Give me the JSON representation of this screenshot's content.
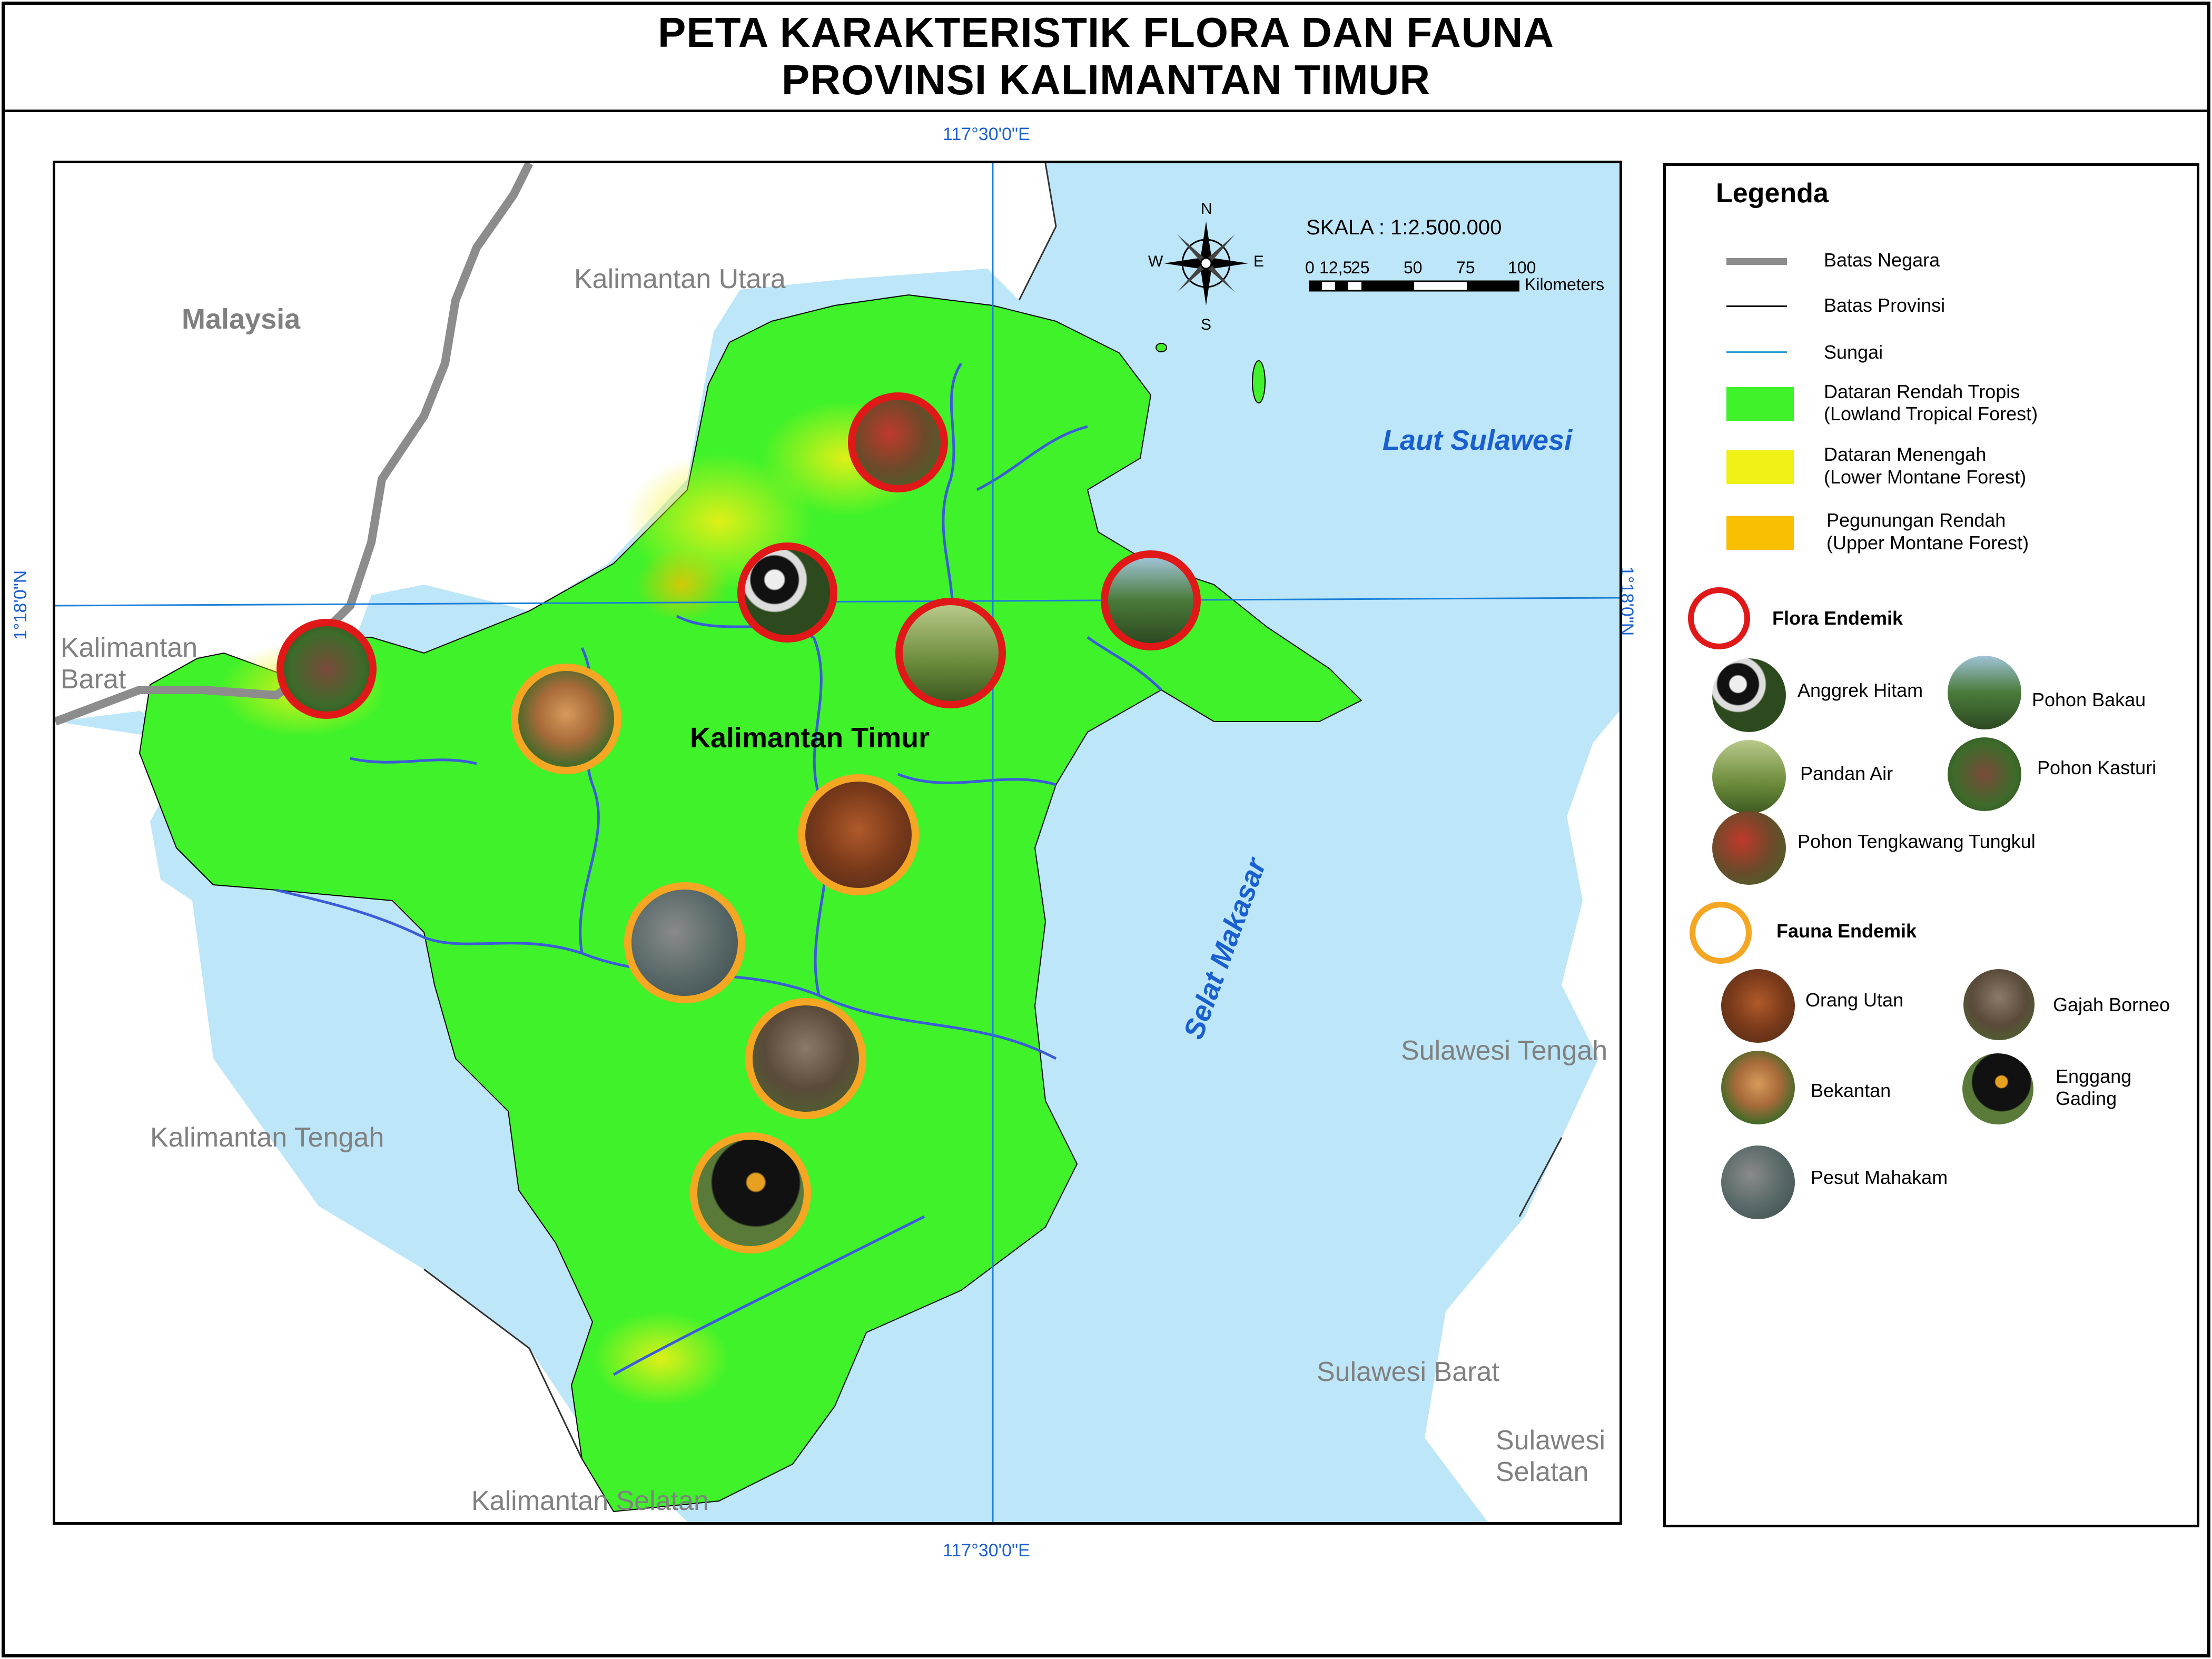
{
  "title": {
    "line1": "PETA KARAKTERISTIK FLORA DAN FAUNA",
    "line2": "PROVINSI KALIMANTAN TIMUR"
  },
  "coordinates": {
    "top_lon": "117°30'0\"E",
    "bottom_lon": "117°30'0\"E",
    "left_lat": "1°18'0\"N",
    "right_lat": "1°18'0\"N"
  },
  "map": {
    "labels": {
      "malaysia": "Malaysia",
      "kal_utara": "Kalimantan Utara",
      "kal_barat_1": "Kalimantan",
      "kal_barat_2": "Barat",
      "kal_timur": "Kalimantan Timur",
      "kal_tengah": "Kalimantan Tengah",
      "kal_selatan": "Kalimantan Selatan",
      "laut_sulawesi": "Laut Sulawesi",
      "selat_makasar": "Selat Makasar",
      "sul_tengah": "Sulawesi Tengah",
      "sul_barat": "Sulawesi Barat",
      "sul_selatan_1": "Sulawesi",
      "sul_selatan_2": "Selatan"
    },
    "scale": {
      "title": "SKALA : 1:2.500.000",
      "ticks": [
        "0",
        "12,5",
        "25",
        "50",
        "75",
        "100"
      ],
      "unit": "Kilometers"
    },
    "compass": {
      "n": "N",
      "s": "S",
      "e": "E",
      "w": "W"
    },
    "markers": [
      {
        "kind": "flora",
        "subject": "Pohon Tengkawang Tungkul"
      },
      {
        "kind": "flora",
        "subject": "Anggrek Hitam"
      },
      {
        "kind": "flora",
        "subject": "Pandan Air"
      },
      {
        "kind": "flora",
        "subject": "Pohon Bakau"
      },
      {
        "kind": "flora",
        "subject": "Pohon Kasturi"
      },
      {
        "kind": "fauna",
        "subject": "Bekantan"
      },
      {
        "kind": "fauna",
        "subject": "Orang Utan"
      },
      {
        "kind": "fauna",
        "subject": "Pesut Mahakam"
      },
      {
        "kind": "fauna",
        "subject": "Gajah Borneo"
      },
      {
        "kind": "fauna",
        "subject": "Enggang Gading"
      }
    ]
  },
  "legend": {
    "title": "Legenda",
    "lines": [
      {
        "label": "Batas Negara",
        "color": "#8c8c8c"
      },
      {
        "label": "Batas Provinsi",
        "color": "#000000"
      },
      {
        "label": "Sungai",
        "color": "#2a9fd6"
      }
    ],
    "zones": [
      {
        "line1": "Dataran Rendah Tropis",
        "line2": "(Lowland Tropical Forest)",
        "color": "#3ff22a"
      },
      {
        "line1": "Dataran Menengah",
        "line2": "(Lower Montane Forest)",
        "color": "#f0f016"
      },
      {
        "line1": "Pegunungan Rendah",
        "line2": "(Upper Montane Forest)",
        "color": "#f8c000"
      }
    ],
    "flora": {
      "title": "Flora Endemik",
      "ring_color": "#e01818",
      "items": [
        "Anggrek Hitam",
        "Pohon Bakau",
        "Pandan Air",
        "Pohon Kasturi",
        "Pohon Tengkawang Tungkul"
      ]
    },
    "fauna": {
      "title": "Fauna Endemik",
      "ring_color": "#f5a623",
      "items": [
        "Orang Utan",
        "Gajah Borneo",
        "Bekantan",
        "Enggang",
        "Gading",
        "Pesut Mahakam"
      ]
    }
  },
  "colors": {
    "sea": "#bde6f8",
    "lowland": "#3ff22a",
    "border_country": "#8c8c8c",
    "river": "#3b5bd9",
    "grid": "#1a7fd8"
  }
}
